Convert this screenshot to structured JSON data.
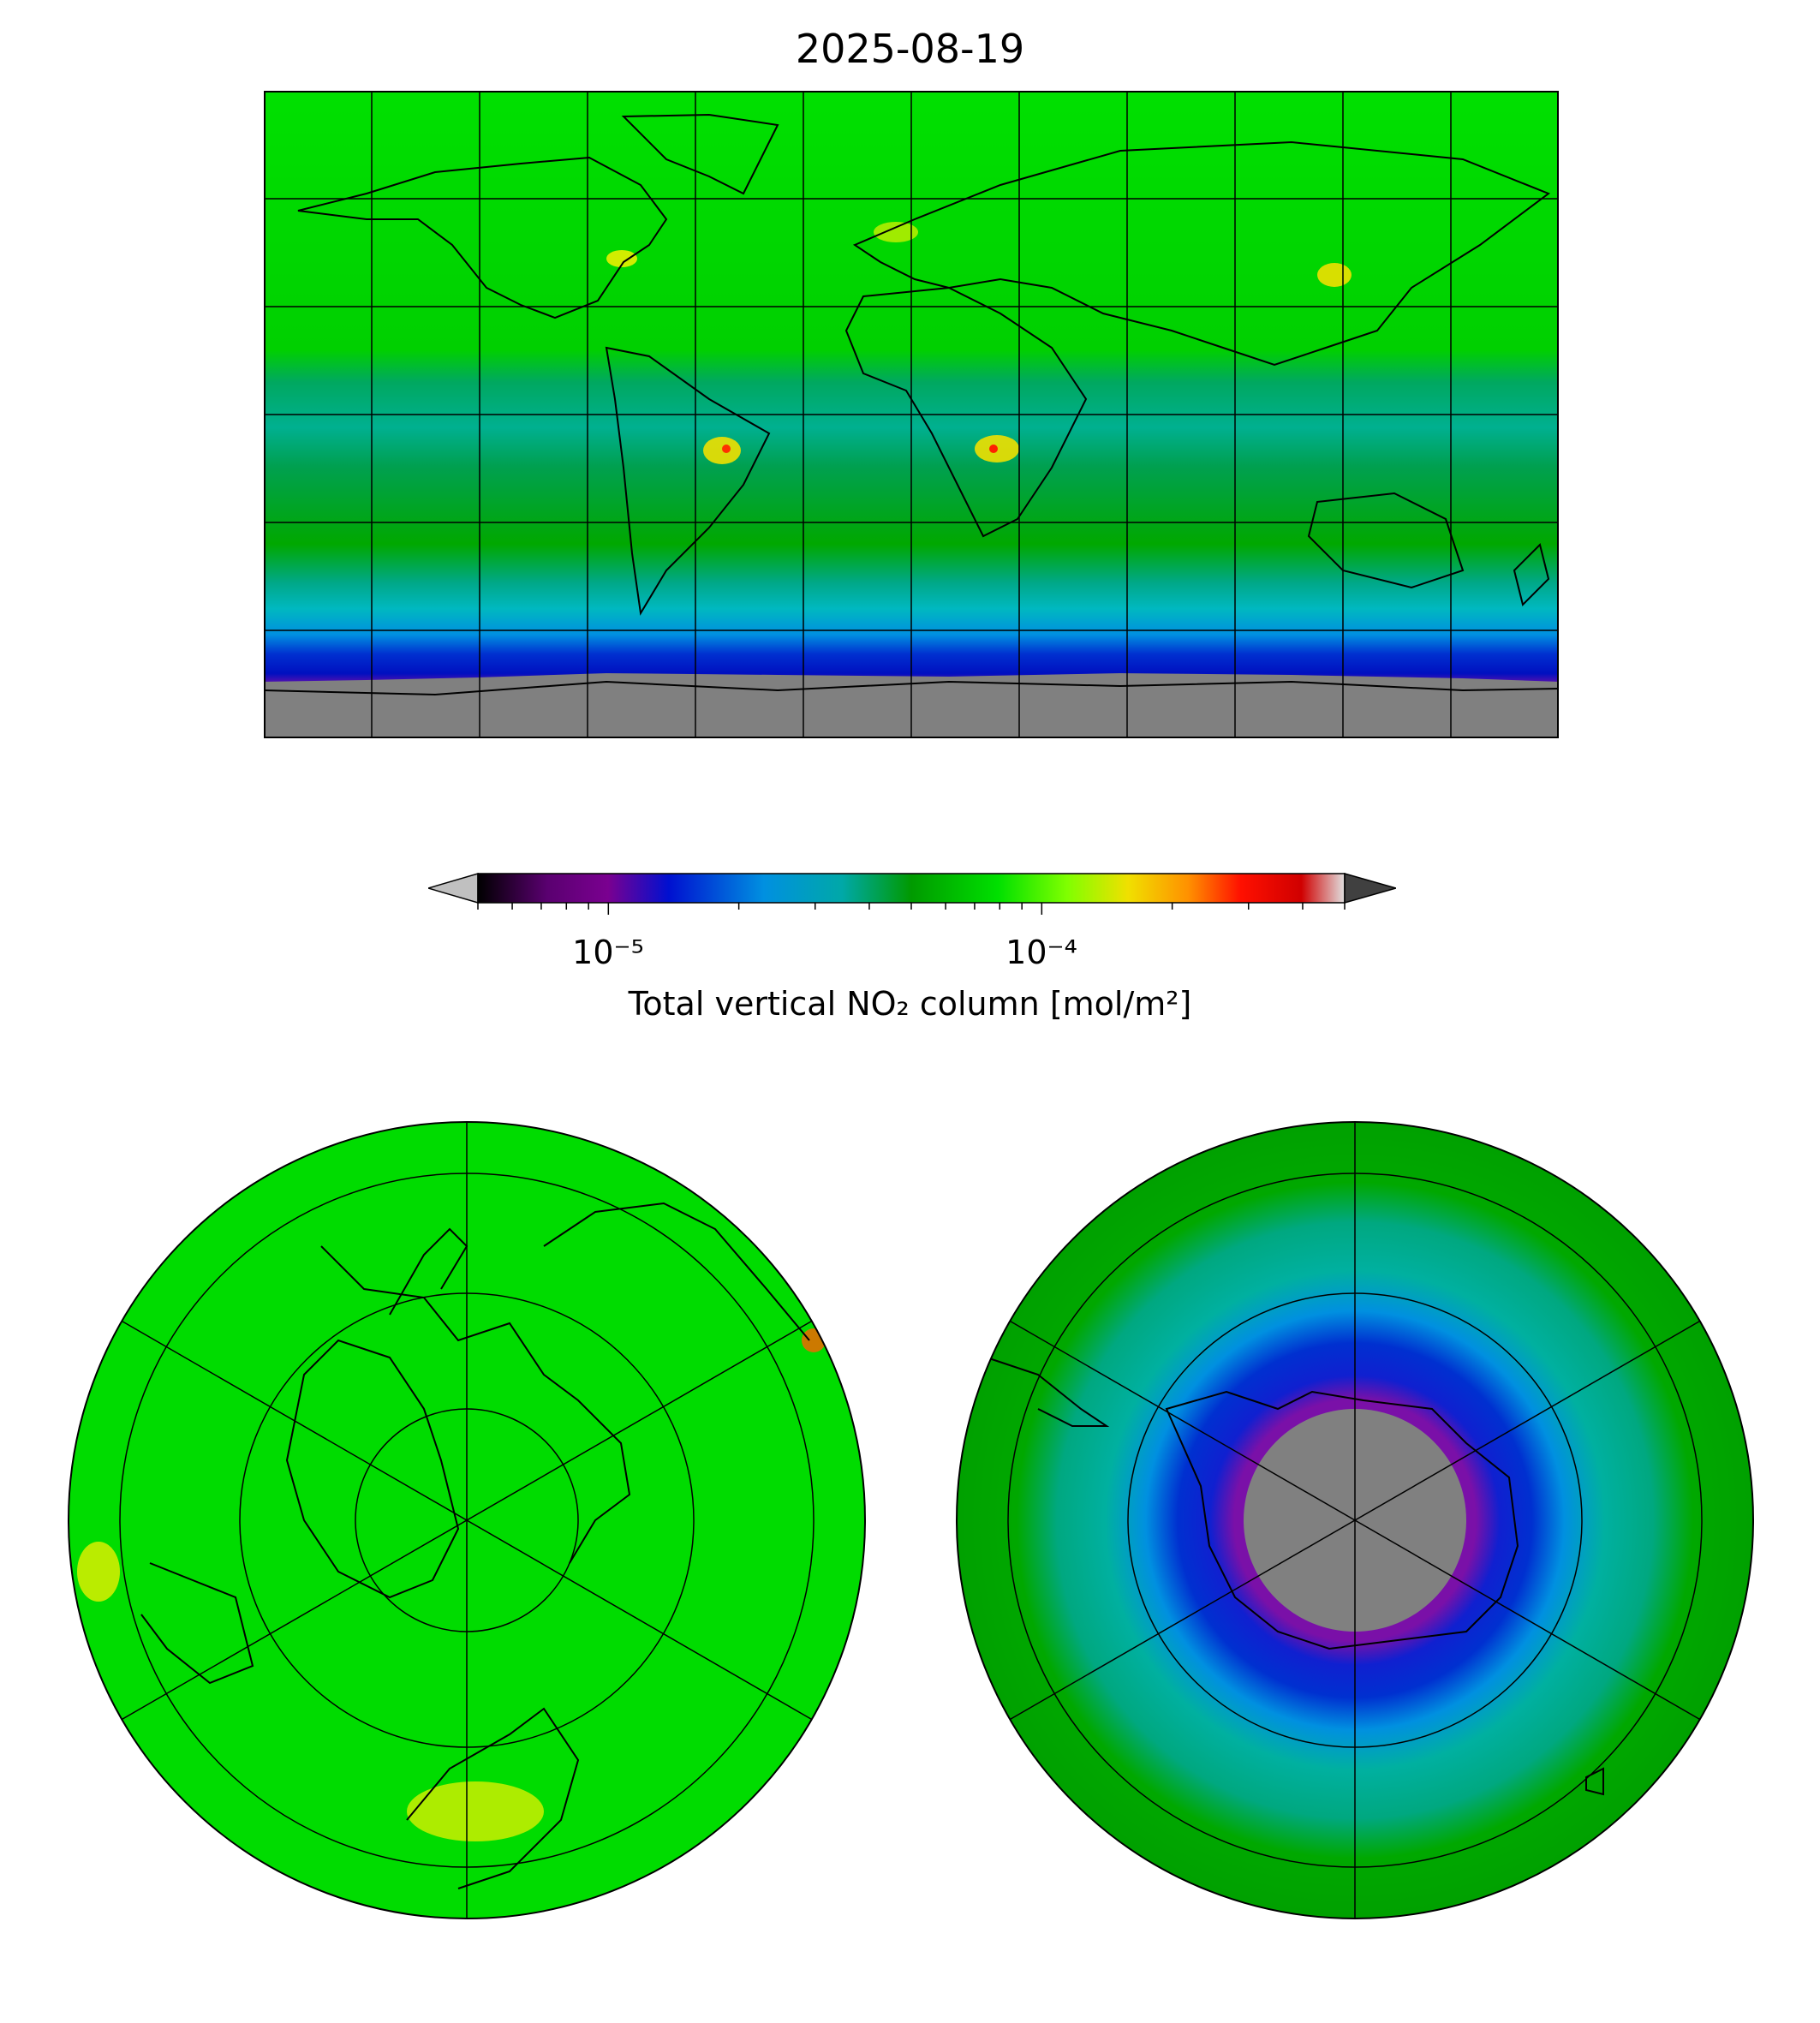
{
  "title": "2025-08-19",
  "colorbar": {
    "label": "Total vertical NO₂ column [mol/m²]",
    "tick_labels": [
      "10⁻⁵",
      "10⁻⁴"
    ],
    "scale": "log",
    "range": [
      5e-06,
      0.0005
    ],
    "colors": [
      "#000000",
      "#7a0090",
      "#0010d0",
      "#0090e0",
      "#00a8a8",
      "#009a00",
      "#00e000",
      "#80ff00",
      "#f0e000",
      "#ff9000",
      "#ff1000",
      "#d00000",
      "#e0e0e0"
    ],
    "under_color": "#c0c0c0",
    "over_color": "#404040"
  },
  "colors": {
    "background_green": "#00e000",
    "dark_green": "#00a000",
    "teal": "#00b0a0",
    "blue": "#0030d0",
    "purple": "#7a10a8",
    "no_data": "#808080",
    "hotspot_yellow": "#e8f000",
    "hotspot_red": "#ff3000"
  },
  "maps": [
    {
      "name": "global",
      "projection": "plate-carree"
    },
    {
      "name": "north-polar",
      "projection": "north-polar-stereographic"
    },
    {
      "name": "south-polar",
      "projection": "south-polar-stereographic"
    }
  ]
}
